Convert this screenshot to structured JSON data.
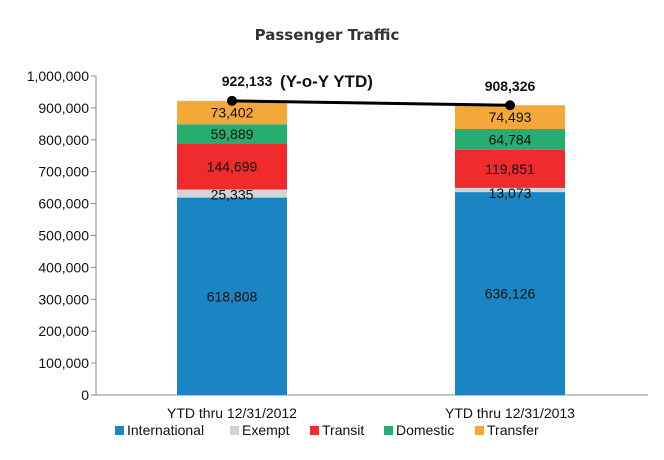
{
  "chart_data": {
    "type": "bar",
    "stacked": true,
    "title": "Passenger Traffic",
    "categories": [
      "YTD thru 12/31/2012",
      "YTD thru 12/31/2013"
    ],
    "series": [
      {
        "name": "International",
        "color": "#1a85c2",
        "values": [
          618808,
          636126
        ],
        "labels": [
          "618,808",
          "636,126"
        ]
      },
      {
        "name": "Exempt",
        "color": "#d4d4d4",
        "values": [
          25335,
          13073
        ],
        "labels": [
          "25,335",
          "13,073"
        ]
      },
      {
        "name": "Transit",
        "color": "#ef2b2d",
        "values": [
          144699,
          119851
        ],
        "labels": [
          "144,699",
          "119,851"
        ]
      },
      {
        "name": "Domestic",
        "color": "#26ad6f",
        "values": [
          59889,
          64784
        ],
        "labels": [
          "59,889",
          "64,784"
        ]
      },
      {
        "name": "Transfer",
        "color": "#f5a83a",
        "values": [
          73402,
          74493
        ],
        "labels": [
          "73,402",
          "74,493"
        ]
      }
    ],
    "totals": {
      "values": [
        922133,
        908326
      ],
      "labels": [
        "922,133",
        "908,326"
      ],
      "line_color": "#000000"
    },
    "annotation": "(Y-o-Y YTD)",
    "ylim": [
      0,
      1000000
    ],
    "yticks": [
      0,
      100000,
      200000,
      300000,
      400000,
      500000,
      600000,
      700000,
      800000,
      900000,
      1000000
    ],
    "ytick_labels": [
      "0",
      "100,000",
      "200,000",
      "300,000",
      "400,000",
      "500,000",
      "600,000",
      "700,000",
      "800,000",
      "900,000",
      "1,000,000"
    ],
    "grid": false,
    "legend": "bottom"
  }
}
